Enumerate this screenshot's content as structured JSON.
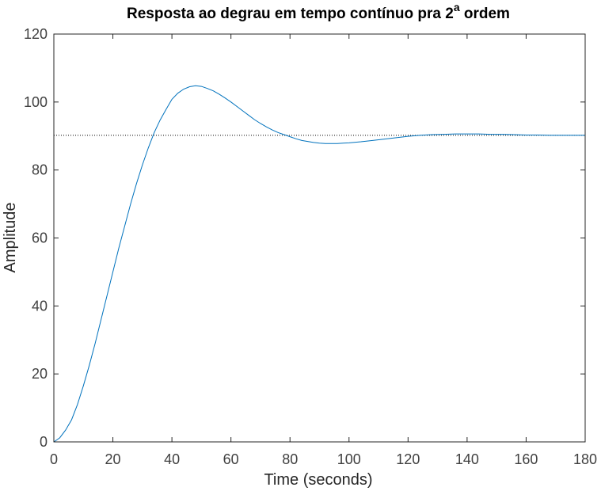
{
  "chart_data": {
    "type": "line",
    "title": "Resposta ao degrau em tempo contínuo pra 2",
    "title_superscript": "a",
    "title_suffix": " ordem",
    "xlabel": "Time (seconds)",
    "ylabel": "Amplitude",
    "xlim": [
      0,
      180
    ],
    "ylim": [
      0,
      120
    ],
    "xticks": [
      0,
      20,
      40,
      60,
      80,
      100,
      120,
      140,
      160,
      180
    ],
    "yticks": [
      0,
      20,
      40,
      60,
      80,
      100,
      120
    ],
    "grid": false,
    "legend": "none",
    "reference_line": {
      "y": 90.2,
      "style": "dotted"
    },
    "series": [
      {
        "color": "#0072BD",
        "x": [
          0,
          2,
          4,
          6,
          8,
          10,
          12,
          14,
          16,
          18,
          20,
          22,
          24,
          26,
          28,
          30,
          32,
          34,
          36,
          38,
          40,
          42,
          44,
          46,
          48,
          50,
          52,
          54,
          56,
          58,
          60,
          62,
          64,
          66,
          68,
          70,
          72,
          74,
          76,
          78,
          80,
          82,
          84,
          86,
          88,
          90,
          92,
          94,
          96,
          98,
          100,
          104,
          108,
          112,
          116,
          120,
          124,
          128,
          132,
          136,
          140,
          144,
          148,
          152,
          156,
          160,
          164,
          168,
          172,
          176,
          180
        ],
        "y": [
          0,
          1.2,
          3.5,
          6.5,
          11,
          16.5,
          22.5,
          29,
          36,
          43,
          50,
          57,
          63.5,
          70,
          76,
          81.5,
          86.5,
          91,
          94.7,
          97.8,
          100.8,
          102.6,
          103.8,
          104.5,
          104.8,
          104.6,
          104,
          103.3,
          102.3,
          101.2,
          100,
          98.7,
          97.4,
          96.1,
          94.8,
          93.7,
          92.7,
          91.8,
          91,
          90.4,
          89.8,
          89.2,
          88.7,
          88.4,
          88.1,
          87.9,
          87.8,
          87.8,
          87.8,
          87.9,
          88,
          88.3,
          88.7,
          89.1,
          89.5,
          89.9,
          90.2,
          90.4,
          90.5,
          90.6,
          90.6,
          90.6,
          90.5,
          90.5,
          90.4,
          90.3,
          90.3,
          90.2,
          90.2,
          90.2,
          90.2
        ]
      }
    ]
  }
}
